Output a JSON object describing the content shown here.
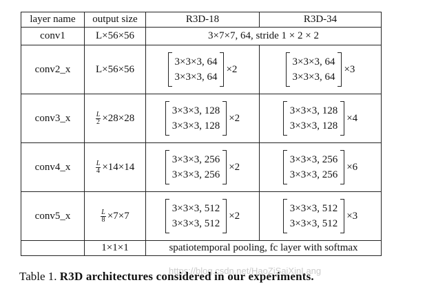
{
  "table": {
    "header": [
      "layer name",
      "output size",
      "R3D-18",
      "R3D-34"
    ],
    "conv1": {
      "layer": "conv1",
      "output": "L×56×56",
      "span": "3×7×7, 64, stride 1 × 2 × 2"
    },
    "blocks": [
      {
        "layer": "conv2_x",
        "output": {
          "text": "L×56×56"
        },
        "r18": {
          "lines": [
            "3×3×3, 64",
            "3×3×3, 64"
          ],
          "mult": "×2"
        },
        "r34": {
          "lines": [
            "3×3×3, 64",
            "3×3×3, 64"
          ],
          "mult": "×3"
        }
      },
      {
        "layer": "conv3_x",
        "output": {
          "num": "L",
          "den": "2",
          "rest": "×28×28"
        },
        "r18": {
          "lines": [
            "3×3×3, 128",
            "3×3×3, 128"
          ],
          "mult": "×2"
        },
        "r34": {
          "lines": [
            "3×3×3, 128",
            "3×3×3, 128"
          ],
          "mult": "×4"
        }
      },
      {
        "layer": "conv4_x",
        "output": {
          "num": "L",
          "den": "4",
          "rest": "×14×14"
        },
        "r18": {
          "lines": [
            "3×3×3, 256",
            "3×3×3, 256"
          ],
          "mult": "×2"
        },
        "r34": {
          "lines": [
            "3×3×3, 256",
            "3×3×3, 256"
          ],
          "mult": "×6"
        }
      },
      {
        "layer": "conv5_x",
        "output": {
          "num": "L",
          "den": "8",
          "rest": "×7×7"
        },
        "r18": {
          "lines": [
            "3×3×3, 512",
            "3×3×3, 512"
          ],
          "mult": "×2"
        },
        "r34": {
          "lines": [
            "3×3×3, 512",
            "3×3×3, 512"
          ],
          "mult": "×3"
        }
      }
    ],
    "last": {
      "output": "1×1×1",
      "span": "spatiotemporal pooling, fc layer with softmax"
    }
  },
  "caption": {
    "label": "Table 1.",
    "text": "R3D architectures considered in our experiments."
  },
  "watermark": "https://blog.csdn.net/HaoZiSaiXinLang"
}
